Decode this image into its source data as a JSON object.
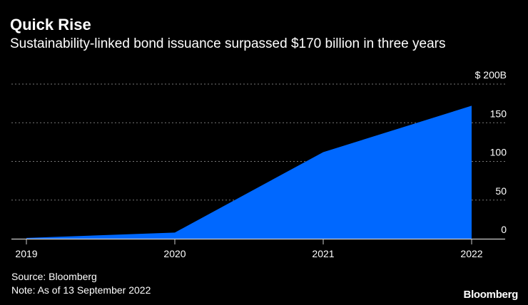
{
  "title": "Quick Rise",
  "subtitle": "Sustainability-linked bond issuance surpassed $170 billion in three years",
  "footer": {
    "source": "Source: Bloomberg",
    "note": "Note: As of 13 September 2022",
    "brand": "Bloomberg"
  },
  "colors": {
    "background": "#000000",
    "fill": "#0068ff",
    "grid": "#777777",
    "text": "#ffffff"
  },
  "chart_data": {
    "type": "area",
    "title": "Quick Rise",
    "subtitle": "Sustainability-linked bond issuance surpassed $170 billion in three years",
    "x": [
      2019,
      2020,
      2021,
      2022
    ],
    "x_tick_labels": [
      "2019",
      "2020",
      "2021",
      "2022"
    ],
    "series": [
      {
        "values": [
          1,
          8,
          112,
          172
        ]
      }
    ],
    "ylim": [
      0,
      200
    ],
    "y_ticks": [
      0,
      50,
      100,
      150,
      200
    ],
    "y_tick_labels": [
      "0",
      "50",
      "100",
      "150",
      "$ 200B"
    ],
    "y_axis_side": "right",
    "grid": true
  }
}
